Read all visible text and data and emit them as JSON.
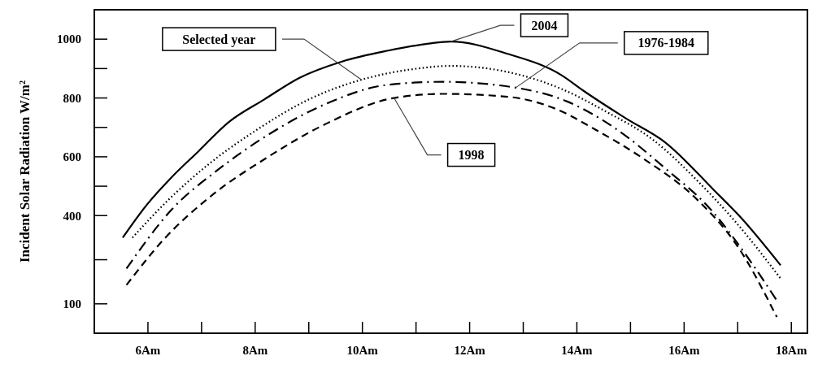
{
  "chart_data": {
    "type": "line",
    "ylabel": "Incident Solar Radiation W/m²",
    "xlim": [
      5,
      18.3
    ],
    "xticks": [
      {
        "value": 6,
        "label": "6Am"
      },
      {
        "value": 7,
        "label": null
      },
      {
        "value": 8,
        "label": "8Am"
      },
      {
        "value": 9,
        "label": null
      },
      {
        "value": 10,
        "label": "10Am"
      },
      {
        "value": 11,
        "label": null
      },
      {
        "value": 12,
        "label": "12Am"
      },
      {
        "value": 13,
        "label": null
      },
      {
        "value": 14,
        "label": "14Am"
      },
      {
        "value": 15,
        "label": null
      },
      {
        "value": 16,
        "label": "16Am"
      },
      {
        "value": 17,
        "label": null
      },
      {
        "value": 18,
        "label": "18Am"
      }
    ],
    "ylim": [
      0,
      1100
    ],
    "yticks": [
      100,
      {
        "value": 250,
        "label": null
      },
      400,
      {
        "value": 500,
        "label": null
      },
      600,
      {
        "value": 700,
        "label": null
      },
      800,
      {
        "value": 900,
        "label": null
      },
      1000
    ],
    "grid": false,
    "series": [
      {
        "name": "2004",
        "color": "#000000",
        "line_style": "solid",
        "x": [
          5.53,
          5.98,
          6.44,
          6.95,
          7.5,
          8.17,
          8.82,
          9.62,
          10.48,
          11.24,
          11.65,
          12.71,
          13.71,
          14.12,
          14.92,
          15.64,
          16.55,
          17.05,
          17.8
        ],
        "values": [
          325,
          437,
          530,
          620,
          717,
          795,
          868,
          924,
          961,
          985,
          992,
          950,
          878,
          825,
          730,
          650,
          488,
          395,
          231
        ]
      },
      {
        "name": "Selected year",
        "color": "#000000",
        "line_style": "dotted",
        "x": [
          5.71,
          6.39,
          7.1,
          8.0,
          9.0,
          9.98,
          10.98,
          11.65,
          12.95,
          13.71,
          14.53,
          15.44,
          16.24,
          17.0,
          17.8
        ],
        "values": [
          325,
          455,
          570,
          688,
          795,
          862,
          899,
          909,
          878,
          831,
          755,
          655,
          520,
          370,
          186
        ]
      },
      {
        "name": "1976-1984",
        "color": "#000000",
        "line_style": "dashdot",
        "x": [
          5.6,
          6.44,
          7.3,
          8.2,
          9.32,
          10.48,
          11.5,
          12.86,
          13.82,
          14.73,
          15.64,
          16.5,
          17.26,
          17.73
        ],
        "values": [
          220,
          420,
          555,
          670,
          780,
          845,
          855,
          835,
          788,
          695,
          562,
          420,
          239,
          111
        ]
      },
      {
        "name": "1998",
        "color": "#000000",
        "line_style": "dashed",
        "x": [
          5.6,
          6.29,
          7.2,
          8.2,
          9.32,
          10.59,
          11.5,
          12.71,
          13.62,
          14.32,
          15.23,
          16.24,
          17.0,
          17.73
        ],
        "values": [
          164,
          318,
          470,
          595,
          712,
          800,
          814,
          804,
          762,
          695,
          595,
          455,
          295,
          55
        ]
      }
    ]
  }
}
